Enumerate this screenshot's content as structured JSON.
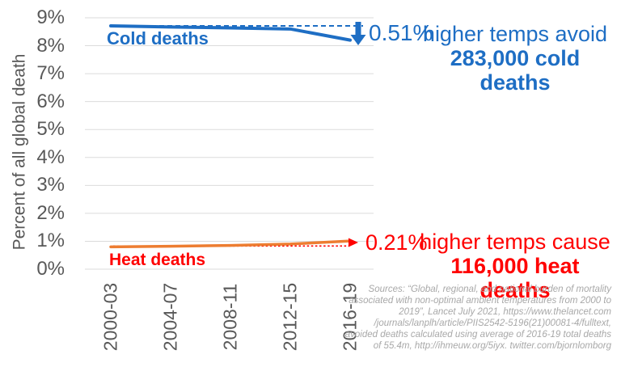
{
  "colors": {
    "blue": "#1E6EC4",
    "red": "#FF0000",
    "orange": "#ED7D31",
    "grid": "#DBDBDB",
    "axis_text": "#595959",
    "source_text": "#A8A8A8",
    "background": "#FFFFFF"
  },
  "chart_data": {
    "type": "line",
    "title": "",
    "ylabel": "Percent of all global death",
    "xlabel": "",
    "ylim": [
      0,
      9
    ],
    "ytick_labels": [
      "0%",
      "1%",
      "2%",
      "3%",
      "4%",
      "5%",
      "6%",
      "7%",
      "8%",
      "9%"
    ],
    "categories": [
      "2000-03",
      "2004-07",
      "2008-11",
      "2012-15",
      "2016-19"
    ],
    "grid": true,
    "legend_position": "inline-labels",
    "series": [
      {
        "name": "Cold deaths",
        "color": "#1E6EC4",
        "style": "solid",
        "values": [
          8.71,
          8.67,
          8.64,
          8.6,
          8.2
        ]
      },
      {
        "name": "Heat deaths",
        "color": "#ED7D31",
        "style": "solid",
        "values": [
          0.8,
          0.82,
          0.85,
          0.9,
          1.01
        ]
      }
    ],
    "reference_lines": [
      {
        "name": "cold-baseline",
        "color": "#1E6EC4",
        "style": "dashed",
        "value": 8.71
      },
      {
        "name": "heat-baseline",
        "color": "#FF0000",
        "style": "dotted",
        "value": 0.83
      }
    ],
    "delta_labels": {
      "cold": "0.51%",
      "heat": "0.21%"
    }
  },
  "labels": {
    "cold_series": "Cold deaths",
    "heat_series": "Heat deaths",
    "cold_delta": "0.51%",
    "heat_delta": "0.21%"
  },
  "callouts": {
    "cold_line1": "higher temps avoid",
    "cold_line2": "283,000 cold deaths",
    "heat_line1": "higher temps cause",
    "heat_line2": "116,000 heat deaths"
  },
  "source": {
    "lines": [
      "Sources: “Global, regional, and national burden of mortality",
      "associated with non-optimal ambient temperatures from 2000 to",
      "2019”, Lancet July 2021, https://www.thelancet.com",
      "/journals/lanplh/article/PIIS2542-5196(21)00081-4/fulltext,",
      "avoided deaths calculated using average of 2016-19 total deaths",
      "of 55.4m, http://ihmeuw.org/5iyx. twitter.com/bjornlomborg"
    ]
  }
}
